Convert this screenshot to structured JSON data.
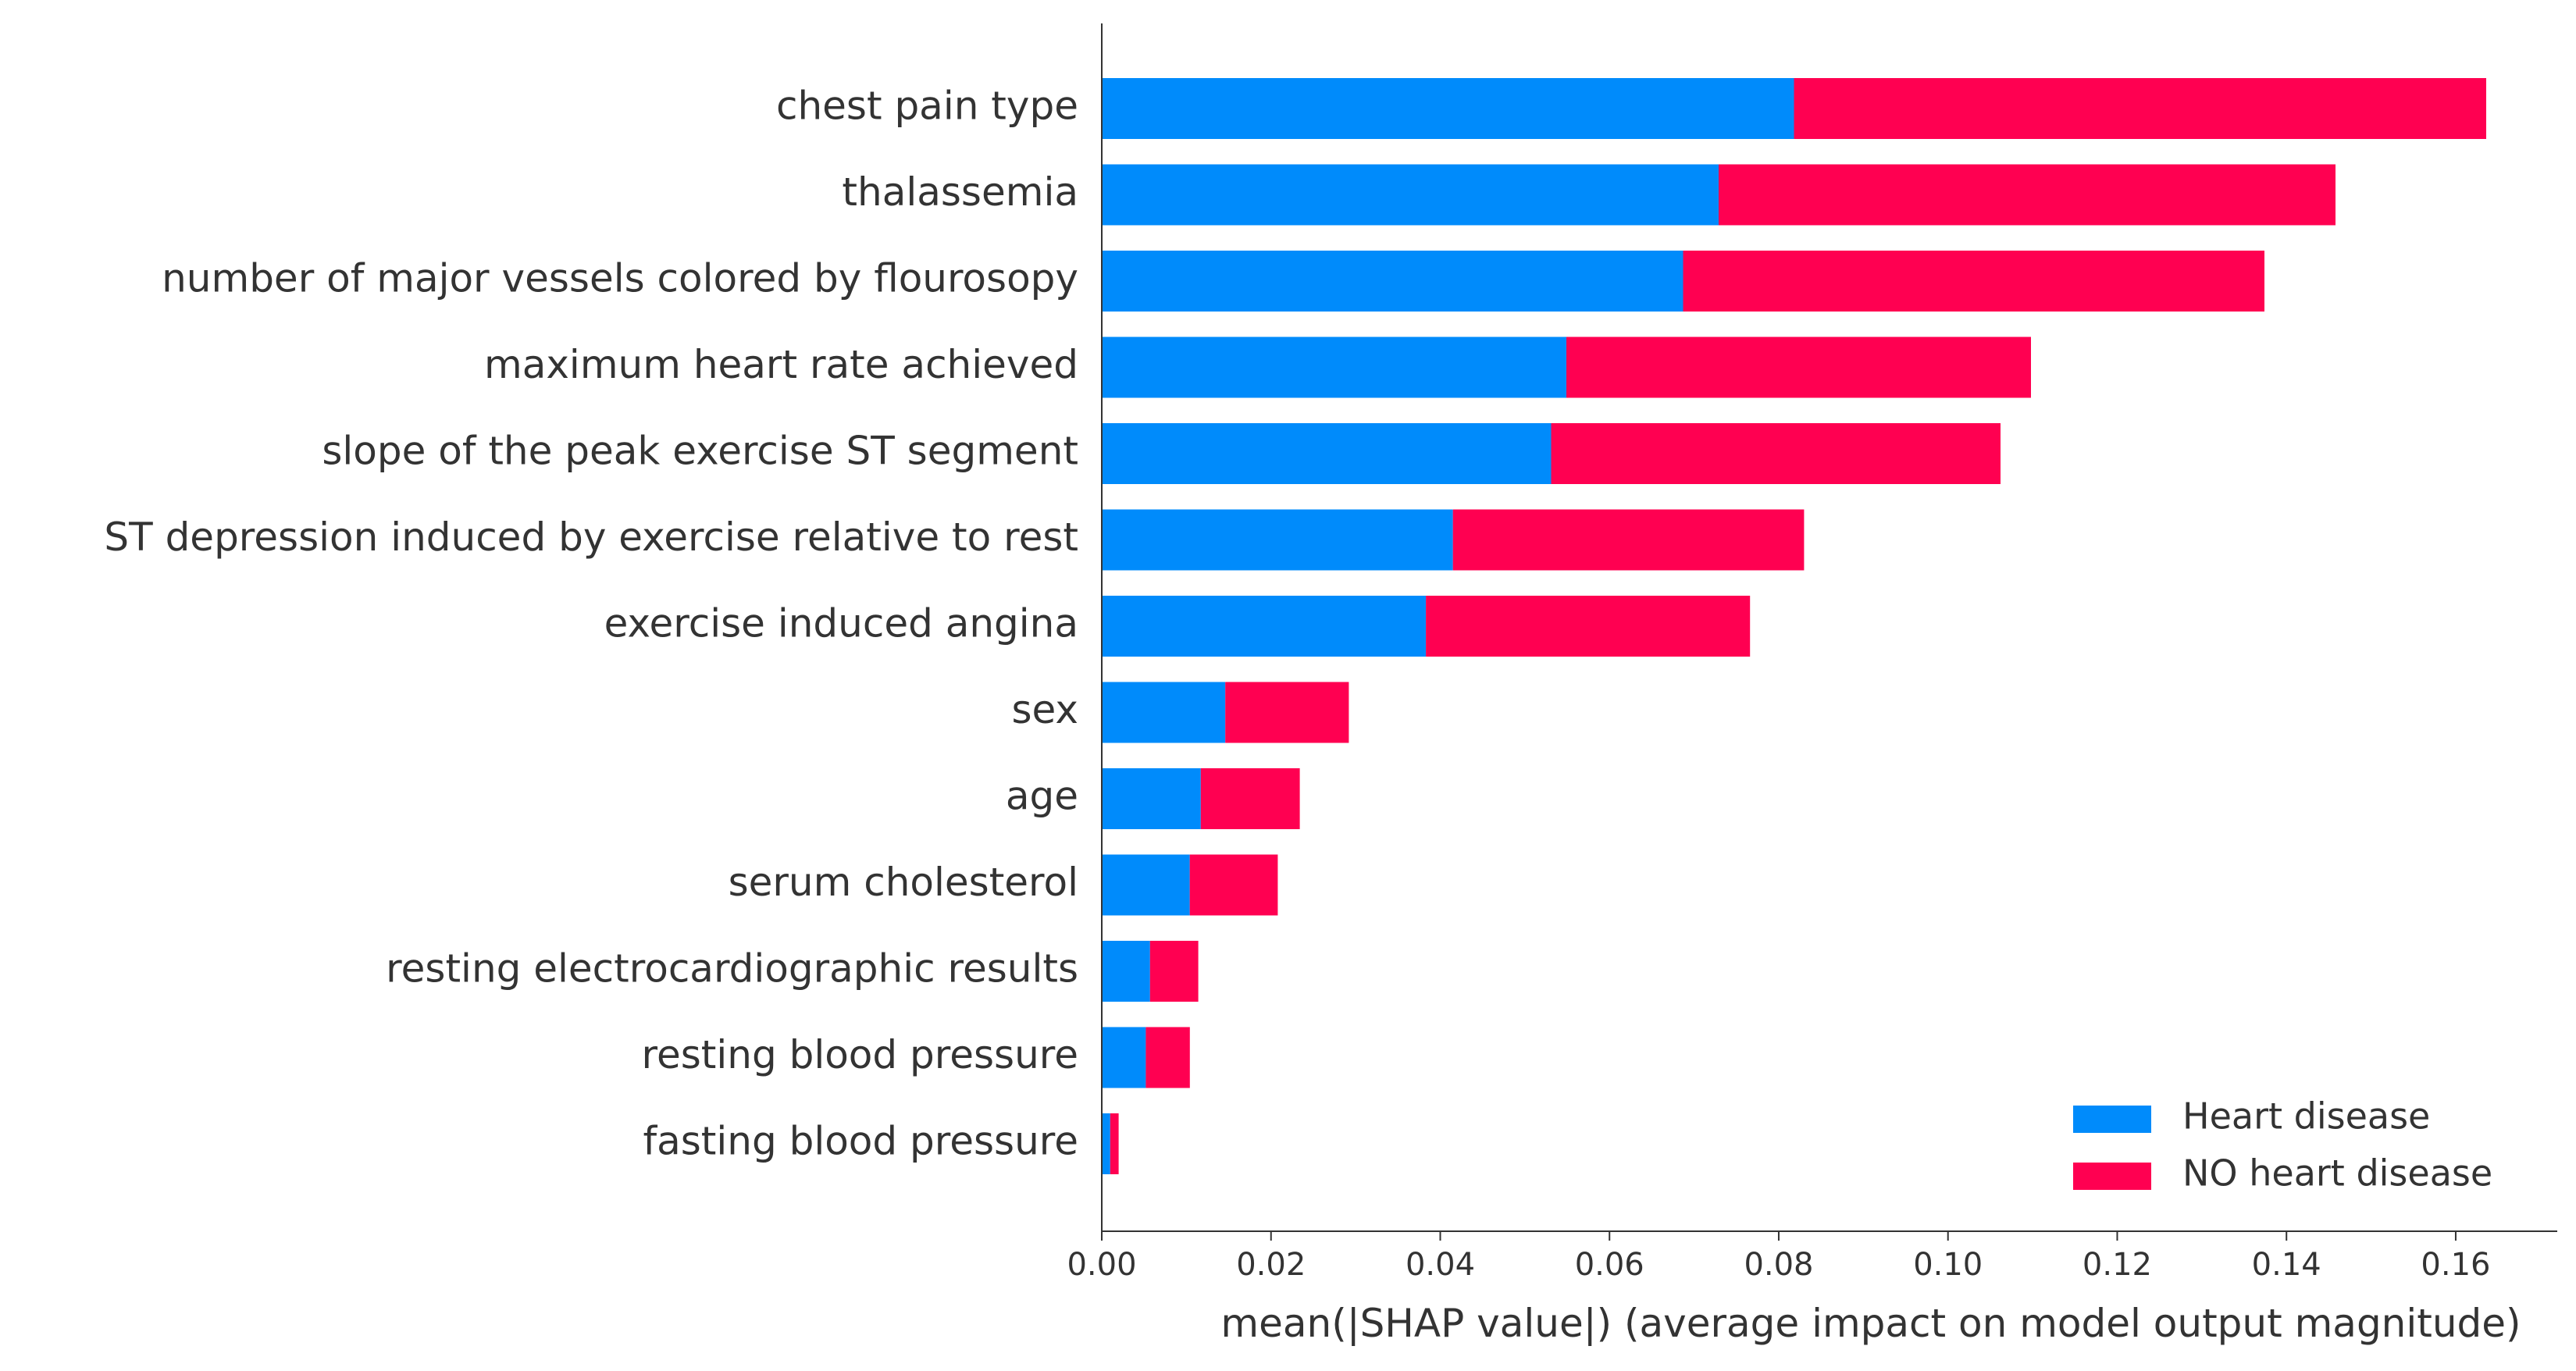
{
  "chart_data": {
    "type": "bar",
    "stacked": true,
    "orientation": "horizontal",
    "categories": [
      "chest pain type",
      "thalassemia",
      "number of major vessels colored by flourosopy",
      "maximum heart rate achieved",
      "slope of the peak exercise ST segment",
      "ST depression induced by exercise relative to rest",
      "exercise induced angina",
      "sex",
      "age",
      "serum cholesterol",
      "resting electrocardiographic results",
      "resting blood pressure",
      "fasting blood pressure"
    ],
    "series": [
      {
        "name": "Heart disease",
        "color": "#008bfb",
        "values": [
          0.0818,
          0.0729,
          0.0687,
          0.0549,
          0.0531,
          0.0415,
          0.0383,
          0.0146,
          0.0117,
          0.0104,
          0.0057,
          0.0052,
          0.001
        ]
      },
      {
        "name": "NO heart disease",
        "color": "#ff0051",
        "values": [
          0.0818,
          0.0729,
          0.0687,
          0.0549,
          0.0531,
          0.0415,
          0.0383,
          0.0146,
          0.0117,
          0.0104,
          0.0057,
          0.0052,
          0.001
        ]
      }
    ],
    "title": "",
    "xlabel": "mean(|SHAP value|) (average impact on model output magnitude)",
    "ylabel": "",
    "xlim": [
      0,
      0.172
    ],
    "xticks": [
      0.0,
      0.02,
      0.04,
      0.06,
      0.08,
      0.1,
      0.12,
      0.14,
      0.16
    ],
    "xtick_labels": [
      "0.00",
      "0.02",
      "0.04",
      "0.06",
      "0.08",
      "0.10",
      "0.12",
      "0.14",
      "0.16"
    ],
    "grid": false,
    "legend_position": "bottom-right",
    "axis_color": "#333333"
  }
}
